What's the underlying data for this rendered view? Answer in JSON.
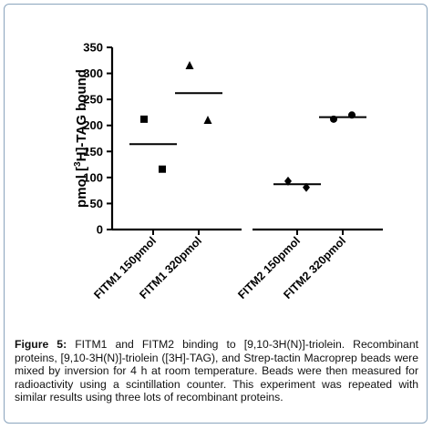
{
  "chart_data": {
    "type": "scatter",
    "ylabel_parts": {
      "pre": "pmol [",
      "sup": "3",
      "post": "H]-TAG bound"
    },
    "ylim": [
      0,
      350
    ],
    "yticks": [
      0,
      50,
      100,
      150,
      200,
      250,
      300,
      350
    ],
    "grid": false,
    "categories": [
      "FITM1 150pmol",
      "FITM1 320pmol",
      "FITM2 150pmol",
      "FITM2 320pmol"
    ],
    "groups": [
      {
        "category": "FITM1 150pmol",
        "marker": "square",
        "values": [
          212,
          116
        ],
        "mean": 164
      },
      {
        "category": "FITM1 320pmol",
        "marker": "triangle",
        "values": [
          315,
          210
        ],
        "mean": 262
      },
      {
        "category": "FITM2 150pmol",
        "marker": "diamond",
        "values": [
          93,
          81
        ],
        "mean": 87
      },
      {
        "category": "FITM2 320pmol",
        "marker": "circle",
        "values": [
          212,
          220
        ],
        "mean": 216
      }
    ]
  },
  "caption": {
    "label": "Figure 5:",
    "text": " FITM1 and FITM2 binding to [9,10-3H(N)]-triolein. Recombinant proteins, [9,10-3H(N)]-triolein ([3H]-TAG), and Strep-tactin Macroprep beads were mixed by inversion for 4 h at room temperature. Beads were then measured for radioactivity using a scintillation counter. This experiment was repeated with similar results using three lots of recombinant proteins."
  },
  "colors": {
    "ink": "#000000",
    "frame": "#8aa4bd"
  }
}
